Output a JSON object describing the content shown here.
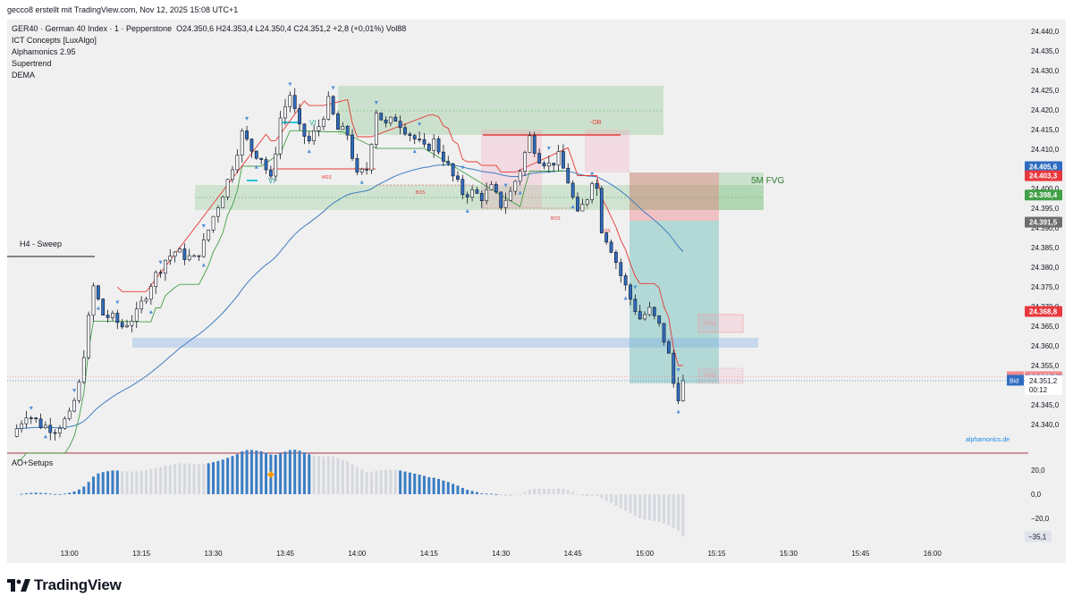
{
  "header": {
    "attribution": "gecco8 erstellt mit TradingView.com, Nov 12, 2025 15:08 UTC+1"
  },
  "legend": {
    "symbol": "GER40 · German 40 Index · 1 · Pepperstone",
    "ohlc": "O24.350,6  H24.353,4  L24.350,4  C24.351,2  +2,8 (+0,01%)  Vol88",
    "indicators": [
      "ICT Concepts [LuxAlgo]",
      "Alphamonics 2.95",
      "Supertrend",
      "DEMA"
    ]
  },
  "annotations": {
    "h4_sweep": "H4 - Sweep",
    "fvg_5m": "5M FVG",
    "ob_label": "-OB",
    "vi_labels": [
      "VI",
      "VI"
    ],
    "mss": "MSS",
    "bos": [
      "BOS",
      "BOS",
      "BOS"
    ],
    "fvg_small": [
      "FVG",
      "FVG"
    ],
    "watermark": "alphamonics.de"
  },
  "price_badges": [
    {
      "name": "badge-24405-6",
      "text": "24.405,6",
      "price": 24405.6,
      "bg": "#2f6cc1"
    },
    {
      "name": "badge-24403-3",
      "text": "24.403,3",
      "price": 24403.3,
      "bg": "#e8383d"
    },
    {
      "name": "badge-24398-4",
      "text": "24.398,4",
      "price": 24398.4,
      "bg": "#43a047"
    },
    {
      "name": "badge-24391-5",
      "text": "24.391,5",
      "price": 24391.5,
      "bg": "#6e6e6e"
    },
    {
      "name": "badge-24368-8",
      "text": "24.368,8",
      "price": 24368.8,
      "bg": "#e8383d"
    },
    {
      "name": "badge-24352-2",
      "text": "24.352,2",
      "price": 24352.2,
      "bg": "#f28b8f",
      "tag": "Ask"
    },
    {
      "name": "badge-24351-3",
      "text": "24.351,3",
      "price": 24351.3,
      "bg": "#2f6cc1",
      "tag": "Bid"
    },
    {
      "name": "badge-24350-6",
      "text": "24.350,6",
      "price": 24350.6,
      "bg": "#10866e"
    }
  ],
  "last_price": {
    "text": "24.351,2",
    "countdown": "00:12",
    "price": 24351.2
  },
  "oscillator": {
    "title": "AO+Setups",
    "ticks": [
      {
        "v": 20,
        "label": "20,0"
      },
      {
        "v": 0,
        "label": "0,0"
      },
      {
        "v": -20,
        "label": "−20,0"
      }
    ],
    "last_label": "−35,1",
    "last_value": -35.1,
    "colors": {
      "positive": "#3b7dc4",
      "faded": "#d6d8e0"
    }
  },
  "chart_data": {
    "type": "candlestick",
    "symbol": "GER40",
    "interval": "1",
    "ylim": [
      24333,
      24443
    ],
    "y_ticks": [
      24340,
      24345,
      24350,
      24355,
      24360,
      24365,
      24370,
      24375,
      24380,
      24385,
      24390,
      24395,
      24400,
      24405,
      24410,
      24415,
      24420,
      24425,
      24430,
      24435,
      24440
    ],
    "y_tick_labels": [
      "24.340,0",
      "24.345,0",
      "24.350,0",
      "24.355,0",
      "24.360,0",
      "24.365,0",
      "24.370,0",
      "24.375,0",
      "24.380,0",
      "24.385,0",
      "24.390,0",
      "24.395,0",
      "24.400,0",
      "24.405,0",
      "24.410,0",
      "24.415,0",
      "24.420,0",
      "24.425,0",
      "24.430,0",
      "24.435,0",
      "24.440,0"
    ],
    "x_ticks": [
      {
        "m": 0,
        "label": "13:00"
      },
      {
        "m": 15,
        "label": "13:15"
      },
      {
        "m": 30,
        "label": "13:30"
      },
      {
        "m": 45,
        "label": "13:45"
      },
      {
        "m": 60,
        "label": "14:00"
      },
      {
        "m": 75,
        "label": "14:15"
      },
      {
        "m": 90,
        "label": "14:30"
      },
      {
        "m": 105,
        "label": "14:45"
      },
      {
        "m": 120,
        "label": "15:00"
      },
      {
        "m": 135,
        "label": "15:15"
      },
      {
        "m": 150,
        "label": "15:30"
      },
      {
        "m": 165,
        "label": "15:45"
      },
      {
        "m": 180,
        "label": "16:00"
      }
    ],
    "xlim_minutes": [
      -13,
      200
    ],
    "price_path": [
      [
        -12,
        24337
      ],
      [
        -9,
        24343
      ],
      [
        -6,
        24340
      ],
      [
        -3,
        24339
      ],
      [
        0,
        24342
      ],
      [
        2,
        24350
      ],
      [
        5,
        24375
      ],
      [
        7,
        24368
      ],
      [
        9,
        24367
      ],
      [
        11,
        24365
      ],
      [
        14,
        24368
      ],
      [
        17,
        24376
      ],
      [
        20,
        24382
      ],
      [
        22,
        24384
      ],
      [
        24,
        24383
      ],
      [
        26,
        24382
      ],
      [
        28,
        24386
      ],
      [
        30,
        24393
      ],
      [
        33,
        24402
      ],
      [
        36,
        24414
      ],
      [
        38,
        24410
      ],
      [
        40,
        24408
      ],
      [
        42,
        24402
      ],
      [
        44,
        24418
      ],
      [
        46,
        24424
      ],
      [
        48,
        24415
      ],
      [
        50,
        24412
      ],
      [
        52,
        24416
      ],
      [
        54,
        24422
      ],
      [
        56,
        24415
      ],
      [
        58,
        24414
      ],
      [
        60,
        24403
      ],
      [
        62,
        24405
      ],
      [
        64,
        24420
      ],
      [
        66,
        24416
      ],
      [
        68,
        24418
      ],
      [
        71,
        24414
      ],
      [
        74,
        24410
      ],
      [
        76,
        24412
      ],
      [
        78,
        24408
      ],
      [
        80,
        24403
      ],
      [
        82,
        24399
      ],
      [
        84,
        24399
      ],
      [
        86,
        24398
      ],
      [
        88,
        24400
      ],
      [
        90,
        24396
      ],
      [
        92,
        24399
      ],
      [
        94,
        24405
      ],
      [
        96,
        24413
      ],
      [
        98,
        24408
      ],
      [
        100,
        24406
      ],
      [
        102,
        24408
      ],
      [
        104,
        24402
      ],
      [
        106,
        24393
      ],
      [
        108,
        24398
      ],
      [
        109.5,
        24405
      ],
      [
        111,
        24390
      ],
      [
        113,
        24385
      ],
      [
        115,
        24378
      ],
      [
        117,
        24372
      ],
      [
        119,
        24367
      ],
      [
        121,
        24369
      ],
      [
        123,
        24365
      ],
      [
        124.5,
        24360
      ],
      [
        125.5,
        24355
      ],
      [
        126.5,
        24346
      ],
      [
        127.5,
        24349
      ],
      [
        128.2,
        24351.2
      ]
    ],
    "last_close": 24351.2
  }
}
